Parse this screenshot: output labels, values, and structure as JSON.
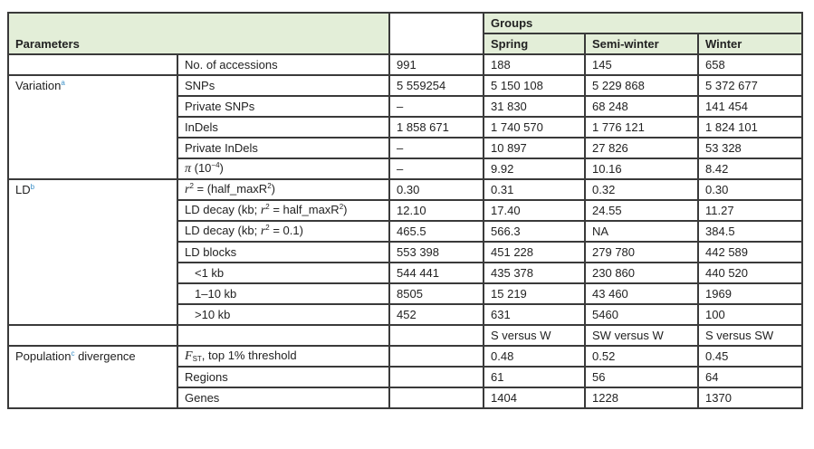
{
  "header": {
    "parameters": "Parameters",
    "groups": "Groups",
    "columns": [
      "Spring",
      "Semi-winter",
      "Winter"
    ]
  },
  "groups": {
    "variation": {
      "label": "Variation",
      "footnote": "a"
    },
    "ld": {
      "label": "LD",
      "footnote": "b"
    },
    "population": {
      "label": "Population",
      "footnote": "c",
      "label_after": " divergence"
    }
  },
  "rows": [
    {
      "param": "No. of accessions",
      "values": [
        "991",
        "188",
        "145",
        "658"
      ]
    },
    {
      "param": "SNPs",
      "values": [
        "5 559254",
        "5 150 108",
        "5 229 868",
        "5 372 677"
      ]
    },
    {
      "param": "Private SNPs",
      "values": [
        "–",
        "31 830",
        "68 248",
        "141 454"
      ]
    },
    {
      "param": "InDels",
      "values": [
        "1 858 671",
        "1 740 570",
        "1 776 121",
        "1 824 101"
      ]
    },
    {
      "param": "Private InDels",
      "values": [
        "–",
        "10 897",
        "27 826",
        "53 328"
      ]
    },
    {
      "param_symbol": "π",
      "param": " (10",
      "param_sup": "−4",
      "param_end": ")",
      "values": [
        "–",
        "9.92",
        "10.16",
        "8.42"
      ]
    },
    {
      "param_symbol": "r",
      "param_sup": "2",
      "param": " = (half_maxR",
      "param_sup2": "2",
      "param_end": ")",
      "values": [
        "0.30",
        "0.31",
        "0.32",
        "0.30"
      ]
    },
    {
      "param": "LD decay (kb; ",
      "param_symbol": "r",
      "param_sup": "2",
      "param_mid": " = half_maxR",
      "param_sup2": "2",
      "param_end": ")",
      "values": [
        "12.10",
        "17.40",
        "24.55",
        "11.27"
      ]
    },
    {
      "param": "LD decay (kb; ",
      "param_symbol": "r",
      "param_sup": "2",
      "param_end": " = 0.1)",
      "values": [
        "465.5",
        "566.3",
        "NA",
        "384.5"
      ]
    },
    {
      "param": "LD blocks",
      "values": [
        "553 398",
        "451 228",
        "279 780",
        "442 589"
      ]
    },
    {
      "param": "<1 kb",
      "values": [
        "544 441",
        "435 378",
        "230 860",
        "440 520"
      ]
    },
    {
      "param": "1–10 kb",
      "values": [
        "8505",
        "15 219",
        "43 460",
        "1969"
      ]
    },
    {
      "param": ">10 kb",
      "values": [
        "452",
        "631",
        "5460",
        "100"
      ]
    },
    {
      "param": "",
      "values": [
        "",
        "S versus W",
        "SW versus W",
        "S versus SW"
      ]
    },
    {
      "param_symbol": "F",
      "param_sub": "ST",
      "param": ", top 1% threshold",
      "values": [
        "",
        "0.48",
        "0.52",
        "0.45"
      ]
    },
    {
      "param": "Regions",
      "values": [
        "",
        "61",
        "56",
        "64"
      ]
    },
    {
      "param": "Genes",
      "values": [
        "",
        "1404",
        "1228",
        "1370"
      ]
    }
  ]
}
